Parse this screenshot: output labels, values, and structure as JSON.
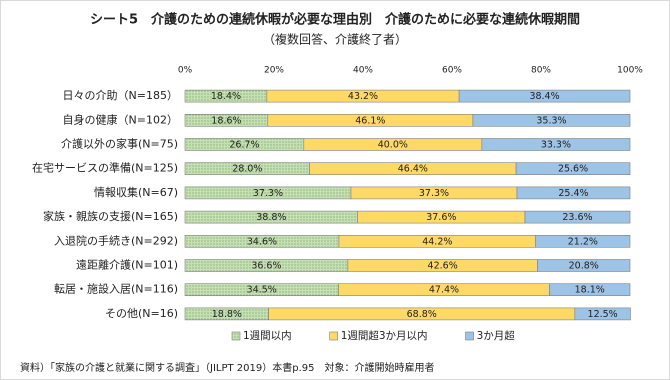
{
  "chart_data": {
    "type": "stacked_barh",
    "title": "シート5　介護のための連続休暇が必要な理由別　介護のために必要な連続休暇期間",
    "subtitle": "（複数回答、介護終了者）",
    "source": "資料）「家族の介護と就業に関する調査」（JILPT 2019）本書p.95　対象：介護開始時雇用者",
    "categories": [
      "日々の介助（N=185）",
      "自身の健康（N=102）",
      "介護以外の家事(N=75)",
      "在宅サービスの準備(N=125)",
      "情報収集(N=67)",
      "家族・親族の支援(N=165)",
      "入退院の手続き(N=292)",
      "遠距離介護(N=101)",
      "転居・施設入居(N=116)",
      "その他(N=16)"
    ],
    "series": [
      {
        "name": "1週間以内",
        "color": "#c5e0b4",
        "pattern": "dots",
        "values": [
          18.4,
          18.6,
          26.7,
          28.0,
          37.3,
          38.8,
          34.6,
          36.6,
          34.5,
          18.8
        ],
        "value_labels": [
          "18.4%",
          "18.6%",
          "26.7%",
          "28.0%",
          "37.3%",
          "38.8%",
          "34.6%",
          "36.6%",
          "34.5%",
          "18.8%"
        ]
      },
      {
        "name": "1週間超3か月以内",
        "color": "#ffd966",
        "values": [
          43.2,
          46.1,
          40.0,
          46.4,
          37.3,
          37.6,
          44.2,
          42.6,
          47.4,
          68.8
        ],
        "value_labels": [
          "43.2%",
          "46.1%",
          "40.0%",
          "46.4%",
          "37.3%",
          "37.6%",
          "44.2%",
          "42.6%",
          "47.4%",
          "68.8%"
        ]
      },
      {
        "name": "3か月超",
        "color": "#9dc3e6",
        "values": [
          38.4,
          35.3,
          33.3,
          25.6,
          25.4,
          23.6,
          21.2,
          20.8,
          18.1,
          12.5
        ],
        "value_labels": [
          "38.4%",
          "35.3%",
          "33.3%",
          "25.6%",
          "25.4%",
          "23.6%",
          "21.2%",
          "20.8%",
          "18.1%",
          "12.5%"
        ]
      }
    ],
    "xlim": [
      0,
      100
    ],
    "xticks": [
      {
        "value": 0,
        "label": "0%"
      },
      {
        "value": 20,
        "label": "20%"
      },
      {
        "value": 40,
        "label": "40%"
      },
      {
        "value": 60,
        "label": "60%"
      },
      {
        "value": 80,
        "label": "80%"
      },
      {
        "value": 100,
        "label": "100%"
      }
    ],
    "grid": false
  }
}
